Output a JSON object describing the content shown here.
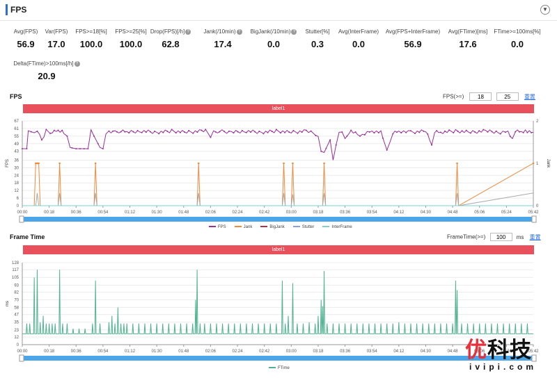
{
  "header": {
    "title": "FPS",
    "collapse_icon": "chevron-down-icon"
  },
  "stats": [
    {
      "label": "Avg(FPS)",
      "value": "56.9",
      "help": false
    },
    {
      "label": "Var(FPS)",
      "value": "17.0",
      "help": false
    },
    {
      "label": "FPS>=18[%]",
      "value": "100.0",
      "help": false
    },
    {
      "label": "FPS>=25[%]",
      "value": "100.0",
      "help": false
    },
    {
      "label": "Drop(FPS)[/h]",
      "value": "62.8",
      "help": true
    },
    {
      "label": "Jank(/10min)",
      "value": "17.4",
      "help": true
    },
    {
      "label": "BigJank(/10min)",
      "value": "0.0",
      "help": true
    },
    {
      "label": "Stutter[%]",
      "value": "0.3",
      "help": false
    },
    {
      "label": "Avg(InterFrame)",
      "value": "0.0",
      "help": false
    },
    {
      "label": "Avg(FPS+InterFrame)",
      "value": "56.9",
      "help": false
    },
    {
      "label": "Avg(FTime)[ms]",
      "value": "17.6",
      "help": false
    },
    {
      "label": "FTime>=100ms[%]",
      "value": "0.0",
      "help": false
    },
    {
      "label": "Delta(FTime)>100ms[/h]",
      "value": "20.9",
      "help": true
    }
  ],
  "fps_section": {
    "title": "FPS",
    "filter_label": "FPS(>=)",
    "filter_values": [
      "18",
      "25"
    ],
    "reset_label": "重置",
    "label_bar": "label1",
    "legend": [
      "FPS",
      "Jank",
      "BigJank",
      "Stutter",
      "InterFrame"
    ]
  },
  "ft_section": {
    "title": "Frame Time",
    "filter_label": "FrameTime(>=)",
    "filter_value": "100",
    "unit": "ms",
    "reset_label": "重置",
    "label_bar": "label1",
    "legend": [
      "FTime"
    ]
  },
  "colors": {
    "fps": "#9b2d9b",
    "jank": "#f0883a",
    "bigjank": "#b0304a",
    "stutter": "#7ea3d8",
    "interframe": "#7ccfcf",
    "ftime": "#4fb38f",
    "label_bar": "#e8505b",
    "slider": "#4aa6e8"
  },
  "chart_data": [
    {
      "type": "line",
      "title": "FPS",
      "ylabel": "FPS",
      "y2label": "Jank",
      "ylim": [
        0,
        67
      ],
      "yticks": [
        0,
        6,
        12,
        18,
        24,
        30,
        36,
        43,
        49,
        55,
        61,
        67
      ],
      "y2lim": [
        0,
        2
      ],
      "y2ticks": [
        0,
        1,
        2
      ],
      "xlim": [
        0,
        342
      ],
      "xticks": [
        "00:00",
        "00:18",
        "00:36",
        "00:54",
        "01:12",
        "01:30",
        "01:48",
        "02:06",
        "02:24",
        "02:42",
        "03:00",
        "03:18",
        "03:36",
        "03:54",
        "04:12",
        "04:30",
        "04:48",
        "05:06",
        "05:24",
        "05:42"
      ],
      "series": [
        {
          "name": "FPS",
          "x": [
            0,
            3,
            4,
            6,
            8,
            10,
            13,
            16,
            20,
            24,
            28,
            30,
            32,
            36,
            40,
            44,
            46,
            48,
            52,
            54,
            56,
            58,
            62,
            66,
            70,
            80,
            90,
            100,
            110,
            120,
            124,
            126,
            128,
            132,
            140,
            150,
            160,
            170,
            180,
            190,
            198,
            200,
            202,
            206,
            208,
            210,
            212,
            214,
            216,
            220,
            226,
            234,
            240,
            244,
            246,
            248,
            252,
            260,
            270,
            274,
            276,
            280,
            290,
            300,
            310,
            320,
            325,
            328,
            330,
            334,
            338,
            342
          ],
          "values": [
            45,
            45,
            58,
            59,
            57,
            60,
            52,
            59,
            58,
            59,
            58,
            55,
            46,
            45,
            45,
            45,
            60,
            55,
            46,
            45,
            58,
            59,
            58,
            59,
            58,
            59,
            58,
            59,
            58,
            59,
            59,
            54,
            58,
            59,
            58,
            59,
            58,
            59,
            58,
            59,
            56,
            43,
            42,
            52,
            36,
            48,
            58,
            57,
            53,
            59,
            55,
            59,
            58,
            44,
            50,
            58,
            59,
            58,
            59,
            48,
            59,
            58,
            59,
            58,
            59,
            58,
            59,
            53,
            59,
            58,
            59,
            58
          ]
        },
        {
          "name": "Jank",
          "x": [
            0,
            8,
            9,
            10,
            11,
            12,
            24,
            25,
            26,
            48,
            49,
            50,
            117,
            118,
            119,
            174,
            175,
            176,
            180,
            181,
            182,
            201,
            202,
            203,
            290,
            291,
            292,
            342
          ],
          "values": [
            0,
            0,
            1,
            1,
            1,
            0,
            0,
            1,
            0,
            0,
            1,
            0,
            0,
            1,
            0,
            0,
            1,
            0,
            0,
            1,
            0,
            0,
            1,
            0,
            0,
            1,
            0,
            1
          ]
        },
        {
          "name": "BigJank",
          "x": [
            0,
            342
          ],
          "values": [
            0,
            0
          ]
        },
        {
          "name": "Stutter",
          "x": [
            0,
            9,
            10,
            11,
            24,
            25,
            26,
            48,
            49,
            50,
            117,
            118,
            119,
            174,
            175,
            176,
            180,
            181,
            182,
            201,
            202,
            203,
            290,
            291,
            292,
            342
          ],
          "values": [
            0,
            0,
            10,
            0,
            0,
            10,
            0,
            0,
            10,
            0,
            0,
            10,
            0,
            0,
            10,
            0,
            0,
            9,
            0,
            0,
            10,
            0,
            0,
            10,
            0,
            10
          ]
        },
        {
          "name": "InterFrame",
          "x": [
            0,
            342
          ],
          "values": [
            0,
            0
          ]
        }
      ],
      "legend_position": "bottom"
    },
    {
      "type": "line",
      "title": "Frame Time",
      "ylabel": "ms",
      "ylim": [
        0,
        128
      ],
      "yticks": [
        0,
        12,
        23,
        35,
        47,
        58,
        70,
        82,
        93,
        105,
        117,
        128
      ],
      "xlim": [
        0,
        342
      ],
      "xticks": [
        "00:00",
        "00:18",
        "00:36",
        "00:54",
        "01:12",
        "01:30",
        "01:48",
        "02:06",
        "02:24",
        "02:42",
        "03:00",
        "03:18",
        "03:36",
        "03:54",
        "04:12",
        "04:30",
        "04:48",
        "05:06",
        "05:24",
        "05:42"
      ],
      "series": [
        {
          "name": "FTime",
          "baseline": 17,
          "spikes": [
            [
              3,
              33
            ],
            [
              5,
              33
            ],
            [
              8,
              105
            ],
            [
              10,
              117
            ],
            [
              12,
              35
            ],
            [
              14,
              45
            ],
            [
              16,
              33
            ],
            [
              18,
              33
            ],
            [
              20,
              33
            ],
            [
              22,
              33
            ],
            [
              25,
              117
            ],
            [
              27,
              33
            ],
            [
              30,
              33
            ],
            [
              34,
              25
            ],
            [
              38,
              25
            ],
            [
              42,
              25
            ],
            [
              47,
              33
            ],
            [
              49,
              100
            ],
            [
              52,
              33
            ],
            [
              58,
              35
            ],
            [
              60,
              45
            ],
            [
              62,
              33
            ],
            [
              64,
              58
            ],
            [
              66,
              33
            ],
            [
              68,
              33
            ],
            [
              70,
              33
            ],
            [
              74,
              33
            ],
            [
              78,
              33
            ],
            [
              82,
              33
            ],
            [
              86,
              33
            ],
            [
              90,
              33
            ],
            [
              94,
              33
            ],
            [
              98,
              33
            ],
            [
              102,
              33
            ],
            [
              106,
              33
            ],
            [
              110,
              33
            ],
            [
              114,
              33
            ],
            [
              116,
              70
            ],
            [
              117,
              117
            ],
            [
              119,
              33
            ],
            [
              122,
              33
            ],
            [
              126,
              33
            ],
            [
              130,
              33
            ],
            [
              134,
              33
            ],
            [
              138,
              33
            ],
            [
              142,
              33
            ],
            [
              146,
              33
            ],
            [
              150,
              33
            ],
            [
              154,
              33
            ],
            [
              158,
              33
            ],
            [
              162,
              33
            ],
            [
              166,
              33
            ],
            [
              170,
              33
            ],
            [
              174,
              100
            ],
            [
              176,
              33
            ],
            [
              178,
              45
            ],
            [
              181,
              96
            ],
            [
              184,
              33
            ],
            [
              188,
              33
            ],
            [
              192,
              35
            ],
            [
              196,
              33
            ],
            [
              198,
              45
            ],
            [
              200,
              70
            ],
            [
              201,
              60
            ],
            [
              202,
              115
            ],
            [
              204,
              33
            ],
            [
              208,
              33
            ],
            [
              212,
              33
            ],
            [
              216,
              33
            ],
            [
              220,
              33
            ],
            [
              224,
              33
            ],
            [
              228,
              33
            ],
            [
              232,
              33
            ],
            [
              236,
              33
            ],
            [
              240,
              33
            ],
            [
              244,
              33
            ],
            [
              248,
              33
            ],
            [
              252,
              35
            ],
            [
              256,
              33
            ],
            [
              260,
              33
            ],
            [
              264,
              33
            ],
            [
              268,
              33
            ],
            [
              272,
              33
            ],
            [
              276,
              33
            ],
            [
              280,
              33
            ],
            [
              284,
              33
            ],
            [
              288,
              33
            ],
            [
              290,
              100
            ],
            [
              291,
              85
            ],
            [
              294,
              33
            ],
            [
              298,
              33
            ],
            [
              302,
              33
            ],
            [
              306,
              33
            ],
            [
              310,
              33
            ],
            [
              314,
              33
            ],
            [
              318,
              33
            ],
            [
              322,
              33
            ],
            [
              326,
              33
            ],
            [
              330,
              33
            ],
            [
              334,
              33
            ],
            [
              338,
              33
            ]
          ]
        }
      ],
      "legend_position": "bottom"
    }
  ]
}
